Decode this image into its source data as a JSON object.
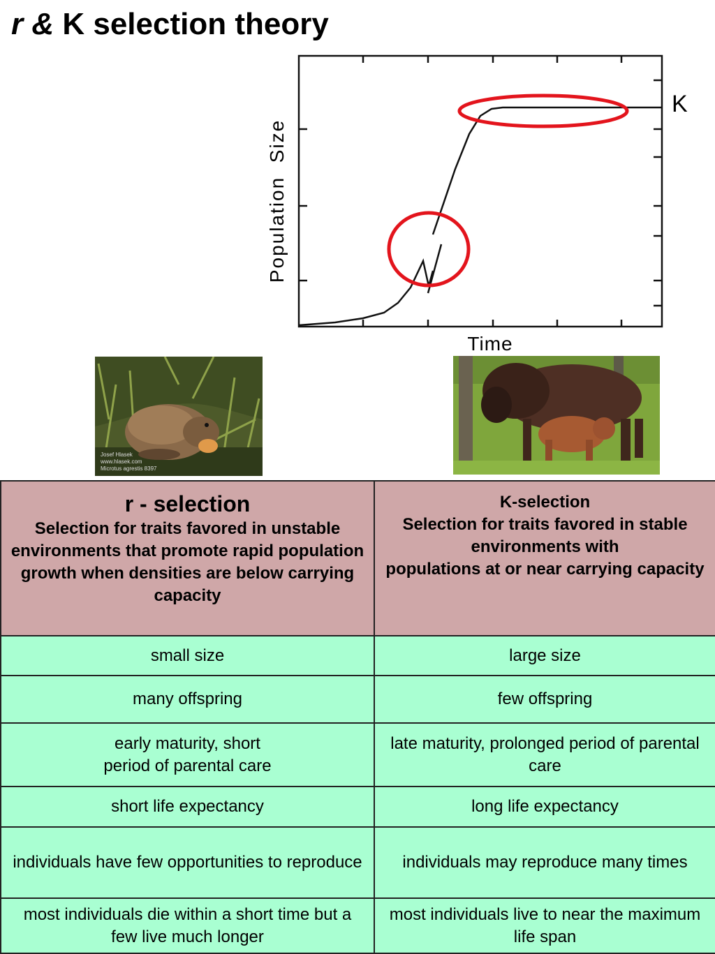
{
  "title": {
    "italic_part": "r &",
    "rest": " K selection theory"
  },
  "diagram": {
    "y_label": "Population  Size",
    "x_label": "Time",
    "curve_end_label": "K",
    "highlight_color": "#e3141c",
    "curve_color": "#111111"
  },
  "images": [
    {
      "subject": "vole",
      "watermark_lines": [
        "Josef Hlasek",
        "www.hlasek.com",
        "Microtus agrestis 8397"
      ]
    },
    {
      "subject": "bison cow with nursing calf"
    }
  ],
  "table": {
    "header": {
      "r_title": "r - selection",
      "r_desc": "Selection for traits favored in unstable environments that promote rapid population growth when densities are below carrying capacity",
      "k_title": "K-selection",
      "k_desc_1": "Selection for traits favored in stable environments with",
      "k_desc_2": "populations at or near carrying capacity"
    },
    "rows": [
      {
        "r": "small size",
        "k": "large size"
      },
      {
        "r": "many offspring",
        "k": "few offspring"
      },
      {
        "r_1": "early maturity, short",
        "r_2": "period of parental care",
        "k": "late maturity, prolonged period of parental care"
      },
      {
        "r": "short life expectancy",
        "k": "long life expectancy"
      },
      {
        "r": "individuals have few opportunities to reproduce",
        "k": "individuals may reproduce many times"
      },
      {
        "r": "most individuals die within a short time but a few live much longer",
        "k": "most individuals live to near the maximum life span"
      }
    ],
    "colors": {
      "header_bg": "#cfa7a8",
      "row_bg": "#a9ffd2"
    }
  }
}
